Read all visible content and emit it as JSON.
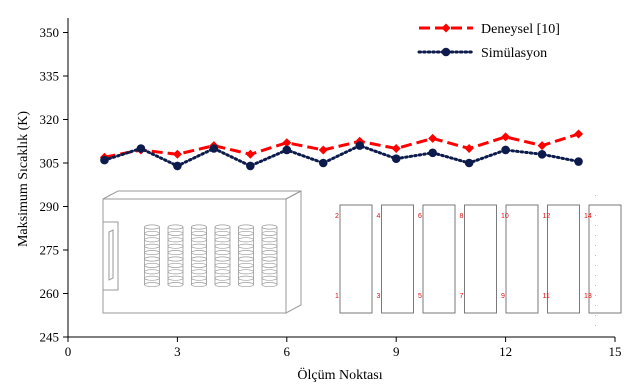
{
  "chart_data": {
    "type": "line",
    "xlabel": "Ölçüm Noktası",
    "ylabel": "Maksimum Sıcaklık (K)",
    "xlim": [
      0,
      15
    ],
    "ylim": [
      245,
      355
    ],
    "xticks": [
      0,
      3,
      6,
      9,
      12,
      15
    ],
    "yticks": [
      245,
      260,
      275,
      290,
      305,
      320,
      335,
      350
    ],
    "legend_position": "top-right",
    "x": [
      1,
      2,
      3,
      4,
      5,
      6,
      7,
      8,
      9,
      10,
      11,
      12,
      13,
      14
    ],
    "series": [
      {
        "name": "Deneysel [10]",
        "color": "#ff0000",
        "style": "dashed",
        "marker": "diamond",
        "values": [
          307.0,
          309.5,
          308.0,
          311.0,
          308.0,
          312.0,
          309.5,
          312.5,
          310.0,
          313.5,
          310.0,
          314.0,
          311.0,
          315.0
        ]
      },
      {
        "name": "Simülasyon",
        "color": "#0d1b4c",
        "style": "dotted",
        "marker": "circle",
        "values": [
          306.0,
          310.0,
          304.0,
          310.0,
          304.0,
          309.5,
          305.0,
          311.0,
          306.5,
          308.5,
          305.0,
          309.5,
          308.0,
          305.5
        ]
      }
    ],
    "inset_labels_top": [
      "2",
      "4",
      "6",
      "8",
      "10",
      "12",
      "14"
    ],
    "inset_labels_bottom": [
      "1",
      "3",
      "5",
      "7",
      "9",
      "11",
      "13"
    ]
  }
}
